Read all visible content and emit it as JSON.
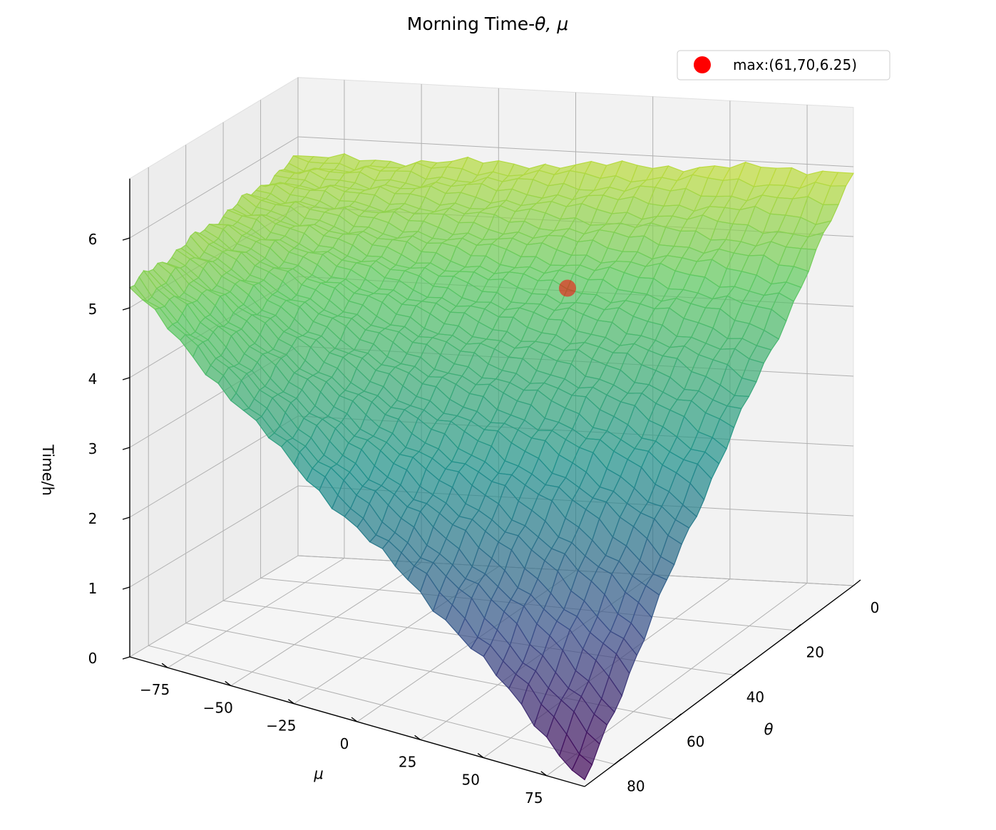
{
  "chart_data": {
    "type": "surface3d",
    "title": "Morning Time-θ,μ",
    "title_prefix": "Morning Time-",
    "title_math": "θ, μ",
    "xlabel": "μ",
    "ylabel": "θ",
    "zlabel": "Time/h",
    "xlim": [
      -90,
      90
    ],
    "ylim": [
      0,
      90
    ],
    "zlim": [
      0,
      6.5
    ],
    "x_ticks": [
      -75,
      -50,
      -25,
      0,
      25,
      50,
      75
    ],
    "x_tick_labels": [
      "−75",
      "−50",
      "−25",
      "0",
      "25",
      "50",
      "75"
    ],
    "y_ticks": [
      0,
      20,
      40,
      60,
      80
    ],
    "y_tick_labels": [
      "0",
      "20",
      "40",
      "60",
      "80"
    ],
    "z_ticks": [
      0,
      1,
      2,
      3,
      4,
      5,
      6
    ],
    "z_tick_labels": [
      "0",
      "1",
      "2",
      "3",
      "4",
      "5",
      "6"
    ],
    "colormap": "viridis",
    "grid": true,
    "surface_corners": [
      {
        "mu": -90,
        "theta": 0,
        "time": 5.7
      },
      {
        "mu": 90,
        "theta": 0,
        "time": 5.9
      },
      {
        "mu": -90,
        "theta": 90,
        "time": 5.3
      },
      {
        "mu": 90,
        "theta": 90,
        "time": 0.0
      }
    ],
    "max_point": {
      "mu": 61,
      "theta": 70,
      "time": 6.25,
      "color": "#ff0000"
    },
    "legend": {
      "location": "upper-right",
      "entries": [
        {
          "label": "max:(61,70,6.25)",
          "color": "#ff0000"
        }
      ]
    }
  }
}
